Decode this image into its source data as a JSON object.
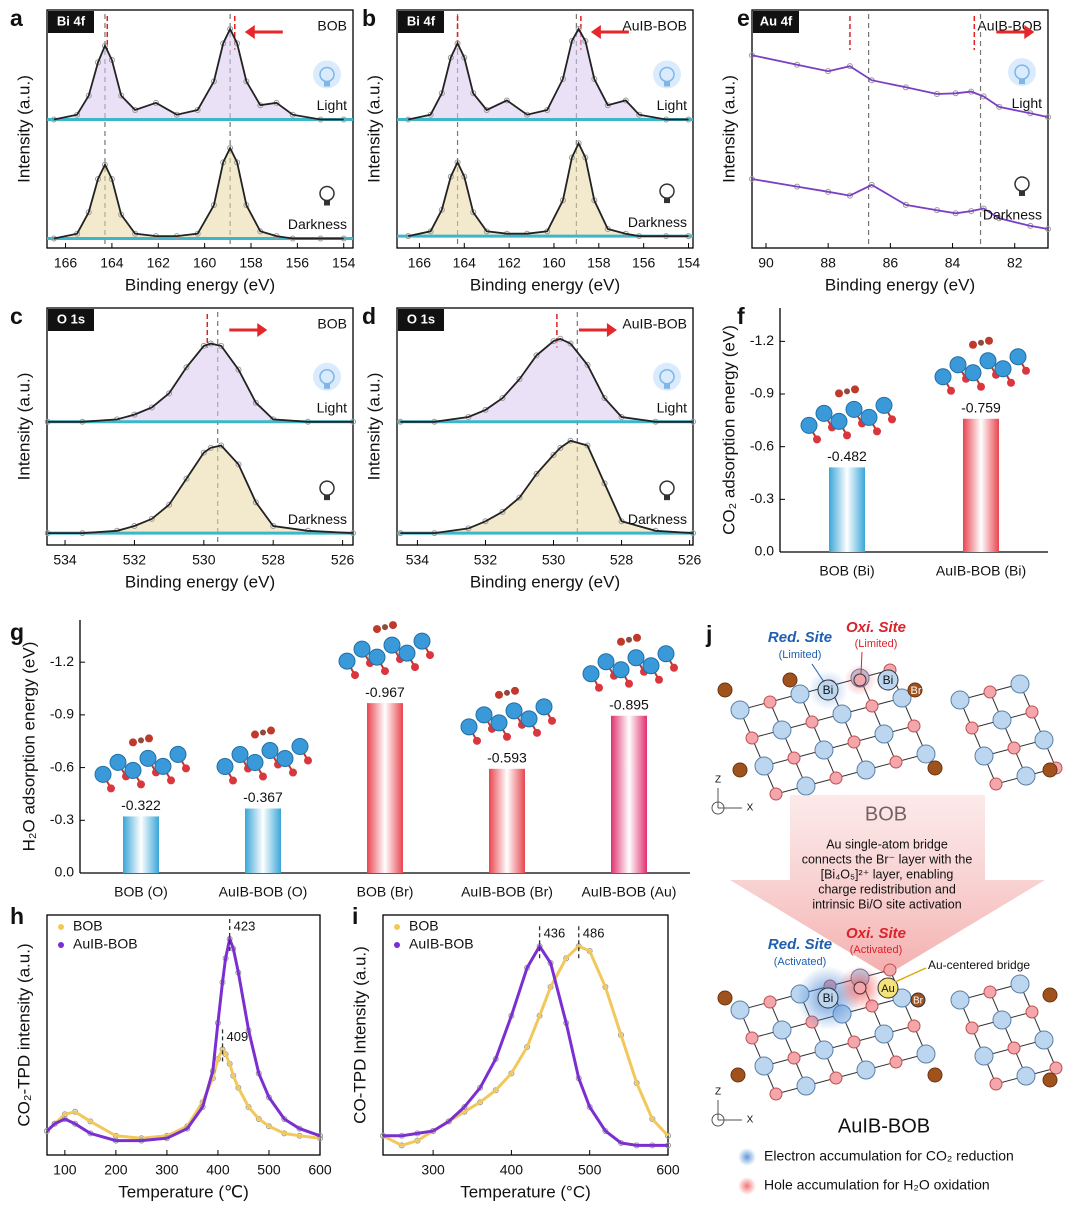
{
  "chart_data": [
    {
      "type": "line",
      "panel_label": "a",
      "tag": "Bi 4f",
      "sample": "BOB",
      "xlabel": "Binding energy (eV)",
      "ylabel": "Intensity (a.u.)",
      "area": true,
      "x": [
        166.5,
        165.5,
        165,
        164.6,
        164.3,
        164,
        163.6,
        163,
        162.1,
        161.2,
        160.3,
        159.6,
        159.2,
        158.9,
        158.6,
        158.2,
        157.6,
        156.9,
        156.2,
        155,
        154
      ],
      "series": [
        {
          "name": "Light",
          "color": "#222222",
          "values": [
            54,
            56,
            64,
            78,
            85,
            79,
            64,
            58,
            61,
            56,
            58,
            70,
            86,
            92,
            86,
            70,
            60,
            61,
            56,
            54,
            54
          ]
        },
        {
          "name": "Darkness",
          "color": "#222222",
          "values": [
            4,
            6,
            15,
            29,
            35,
            29,
            14,
            6,
            5,
            5,
            6,
            18,
            36,
            42,
            36,
            18,
            7,
            5,
            4,
            4,
            4
          ]
        }
      ],
      "xlim": [
        166.8,
        153.6
      ],
      "xticks": [
        166,
        164,
        162,
        160,
        158,
        156,
        154
      ],
      "ylim": [
        0,
        100
      ],
      "ref_lines": [
        164.3,
        158.9
      ],
      "shifted_lines": [
        164.2,
        158.7
      ]
    },
    {
      "type": "line",
      "panel_label": "b",
      "tag": "Bi 4f",
      "sample": "AuIB-BOB",
      "xlabel": "Binding energy (eV)",
      "ylabel": "Intensity (a.u.)",
      "area": true,
      "x": [
        166.5,
        165.5,
        165,
        164.6,
        164.3,
        164,
        163.6,
        163,
        162.1,
        161.2,
        160.3,
        159.6,
        159.2,
        158.9,
        158.6,
        158.2,
        157.6,
        156.8,
        156.2,
        155,
        154
      ],
      "series": [
        {
          "name": "Light",
          "color": "#222222",
          "values": [
            54,
            56,
            65,
            80,
            86,
            80,
            65,
            58,
            62,
            56,
            58,
            71,
            87,
            92,
            87,
            71,
            60,
            62,
            56,
            54,
            54
          ]
        },
        {
          "name": "Darkness",
          "color": "#222222",
          "values": [
            5,
            7,
            16,
            30,
            36,
            30,
            15,
            7,
            6,
            6,
            7,
            20,
            38,
            44,
            38,
            20,
            8,
            6,
            5,
            5,
            5
          ]
        }
      ],
      "xlim": [
        167.0,
        153.8
      ],
      "xticks": [
        166,
        164,
        162,
        160,
        158,
        156,
        154
      ],
      "ylim": [
        0,
        100
      ],
      "ref_lines": [
        164.3,
        159.0
      ],
      "shifted_lines": [
        164.3,
        158.8
      ]
    },
    {
      "type": "line",
      "panel_label": "c",
      "tag": "O 1s",
      "sample": "BOB",
      "xlabel": "Binding energy (eV)",
      "ylabel": "Intensity (a.u.)",
      "area": true,
      "x": [
        534.5,
        533.5,
        532.5,
        532,
        531.5,
        531,
        530.5,
        530,
        529.8,
        529.5,
        529,
        528.5,
        528,
        527,
        525.7
      ],
      "series": [
        {
          "name": "Light",
          "color": "#222222",
          "values": [
            52,
            52,
            53,
            55,
            58,
            64,
            75,
            84,
            85,
            84,
            74,
            60,
            53,
            52,
            52
          ]
        },
        {
          "name": "Darkness",
          "color": "#222222",
          "values": [
            5,
            5,
            6,
            8,
            11,
            17,
            28,
            39,
            41,
            42,
            34,
            18,
            8,
            6,
            5
          ]
        }
      ],
      "xlim": [
        534.52,
        525.7
      ],
      "xticks": [
        534,
        532,
        530,
        528,
        526
      ],
      "ylim": [
        0,
        100
      ],
      "ref_lines": [
        529.6
      ],
      "shifted_lines": [
        529.9
      ]
    },
    {
      "type": "line",
      "panel_label": "d",
      "tag": "O 1s",
      "sample": "AuIB-BOB",
      "xlabel": "Binding energy (eV)",
      "ylabel": "Intensity (a.u.)",
      "area": true,
      "x": [
        534.5,
        533.5,
        532.5,
        532,
        531.5,
        531,
        530.5,
        530,
        529.8,
        529.5,
        529,
        528.5,
        528,
        527,
        525.9
      ],
      "series": [
        {
          "name": "Light",
          "color": "#222222",
          "values": [
            52,
            52,
            54,
            57,
            62,
            70,
            80,
            86,
            87,
            85,
            76,
            62,
            54,
            52,
            52
          ]
        },
        {
          "name": "Darkness",
          "color": "#222222",
          "values": [
            5,
            5,
            7,
            10,
            14,
            20,
            30,
            38,
            41,
            44,
            42,
            26,
            10,
            6,
            5
          ]
        }
      ],
      "xlim": [
        534.6,
        525.9
      ],
      "xticks": [
        534,
        532,
        530,
        528,
        526
      ],
      "ylim": [
        0,
        100
      ],
      "ref_lines": [
        529.3
      ],
      "shifted_lines": [
        529.9
      ]
    },
    {
      "type": "line",
      "panel_label": "e",
      "tag": "Au 4f",
      "sample": "AuIB-BOB",
      "xlabel": "Binding energy (eV)",
      "ylabel": "Intensity (a.u.)",
      "area": false,
      "x": [
        90.45,
        89,
        88,
        87.3,
        86.6,
        85.5,
        84.5,
        83.9,
        83.4,
        83,
        82.5,
        81.5,
        80.93
      ],
      "series": [
        {
          "name": "Light",
          "color": "#7b3fc4",
          "values": [
            81,
            77,
            74.3,
            76.4,
            70.5,
            67.5,
            64.7,
            65,
            65.7,
            63.7,
            59.3,
            56.6,
            55
          ]
        },
        {
          "name": "Darkness",
          "color": "#7b3fc4",
          "values": [
            29,
            25.8,
            23.6,
            22,
            26.5,
            18.1,
            15.9,
            14.6,
            15.5,
            16.6,
            12.5,
            9.3,
            8
          ]
        }
      ],
      "xlim": [
        90.45,
        80.93
      ],
      "xticks": [
        90,
        88,
        86,
        84,
        82
      ],
      "ylim": [
        0,
        100
      ],
      "ref_lines": [
        86.7,
        83.1
      ],
      "shifted_lines": [
        87.3,
        83.3
      ]
    },
    {
      "type": "bar",
      "panel_label": "f",
      "ylabel": "CO₂ adsorption energy (eV)",
      "categories": [
        "BOB (Bi)",
        "AuIB-BOB (Bi)"
      ],
      "values": [
        -0.482,
        -0.759
      ],
      "colors": [
        "#3aa6d8",
        "#e8454f"
      ],
      "ylim": [
        0,
        -1.39
      ],
      "yticks": [
        {
          "value": 0,
          "label": "0.0"
        },
        -0.3,
        -0.6,
        -0.9,
        -1.2
      ]
    },
    {
      "type": "bar",
      "panel_label": "g",
      "ylabel": "H₂O adsorption energy (eV)",
      "categories": [
        "BOB (O)",
        "AuIB-BOB (O)",
        "BOB (Br)",
        "AuIB-BOB (Br)",
        "AuIB-BOB (Au)"
      ],
      "values": [
        -0.322,
        -0.367,
        -0.967,
        -0.593,
        -0.895
      ],
      "colors": [
        "#3aa6d8",
        "#3aa6d8",
        "#e8454f",
        "#e8454f",
        "#e0306f"
      ],
      "ylim": [
        0,
        -1.44
      ],
      "yticks": [
        {
          "value": 0,
          "label": "0.0"
        },
        -0.3,
        -0.6,
        -0.9,
        -1.2
      ]
    },
    {
      "type": "line",
      "panel_label": "h",
      "xlabel": "Temperature (℃)",
      "ylabel": "CO₂-TPD intensity (a.u.)",
      "legend": true,
      "x": [
        65,
        80,
        100,
        120,
        150,
        200,
        250,
        300,
        340,
        370,
        390,
        400,
        409,
        415,
        423,
        430,
        440,
        460,
        480,
        500,
        530,
        560,
        600
      ],
      "series": [
        {
          "name": "BOB",
          "color": "#f2c85b",
          "peak": 409,
          "values": [
            10,
            13,
            17,
            18,
            14,
            8,
            7,
            8,
            12,
            22,
            32,
            40,
            44,
            42,
            38,
            33,
            28,
            20,
            15,
            12,
            9,
            8,
            7
          ]
        },
        {
          "name": "AuIB-BOB",
          "color": "#7b2fd0",
          "peak": 423,
          "values": [
            10,
            13,
            15,
            13,
            9,
            6,
            6,
            7,
            11,
            20,
            35,
            55,
            72,
            82,
            90,
            86,
            76,
            52,
            34,
            24,
            15,
            11,
            8
          ]
        }
      ],
      "xlim": [
        65,
        600
      ],
      "xticks": [
        100,
        200,
        300,
        400,
        500,
        600
      ],
      "ylim": [
        0,
        100
      ]
    },
    {
      "type": "line",
      "panel_label": "i",
      "xlabel": "Temperature (°C)",
      "ylabel": "CO-TPD Intensity (a.u.)",
      "legend": true,
      "x": [
        236,
        260,
        280,
        300,
        320,
        340,
        360,
        380,
        400,
        420,
        436,
        450,
        470,
        486,
        500,
        520,
        540,
        560,
        580,
        600
      ],
      "series": [
        {
          "name": "BOB",
          "color": "#f2c85b",
          "peak": 486,
          "values": [
            8,
            4,
            6,
            10,
            14,
            18,
            22,
            27,
            34,
            45,
            58,
            70,
            82,
            87,
            85,
            70,
            50,
            30,
            15,
            8
          ]
        },
        {
          "name": "AuIB-BOB",
          "color": "#7b2fd0",
          "peak": 436,
          "values": [
            8,
            8,
            9,
            10,
            14,
            20,
            28,
            40,
            58,
            78,
            87,
            80,
            55,
            32,
            20,
            10,
            5,
            4,
            4,
            4
          ]
        }
      ],
      "xlim": [
        236,
        600
      ],
      "xticks": [
        300,
        400,
        500,
        600
      ],
      "ylim": [
        0,
        100
      ]
    }
  ],
  "diagram": {
    "panel_label": "j",
    "top": {
      "red_site": "Red. Site",
      "red_state": "(Limited)",
      "oxi_site": "Oxi. Site",
      "oxi_state": "(Limited)",
      "bi_1": "Bi",
      "bi_2": "Bi",
      "br": "Br",
      "name": "BOB",
      "axis_z": "Z",
      "axis_x": "X"
    },
    "arrow_text": [
      "Au single-atom bridge",
      "connects the Br⁻ layer with the",
      "[Bi₄O₅]²⁺ layer, enabling",
      "charge redistribution and",
      "intrinsic Bi/O site activation"
    ],
    "bottom": {
      "red_site": "Red. Site",
      "red_state": "(Activated)",
      "oxi_site": "Oxi. Site",
      "oxi_state": "(Activated)",
      "bridge": "Au-centered bridge",
      "bi": "Bi",
      "au": "Au",
      "br": "Br",
      "name": "AuIB-BOB",
      "axis_z": "Z",
      "axis_x": "X"
    },
    "legend": [
      "Electron accumulation for CO₂ reduction",
      "Hole accumulation for H₂O oxidation"
    ]
  }
}
